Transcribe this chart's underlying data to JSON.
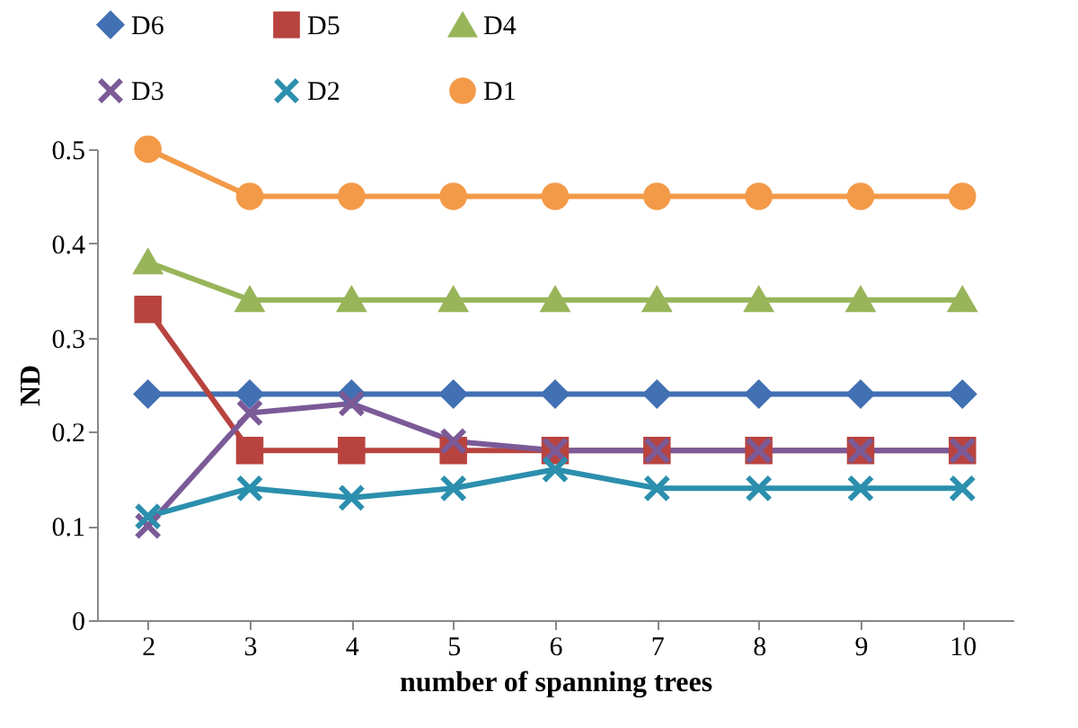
{
  "chart_data": {
    "type": "line",
    "xlabel": "number of spanning trees",
    "ylabel": "ND",
    "categories": [
      "2",
      "3",
      "4",
      "5",
      "6",
      "7",
      "8",
      "9",
      "10"
    ],
    "ylim": [
      0,
      0.5
    ],
    "yticks": [
      0,
      0.1,
      0.2,
      0.3,
      0.4,
      0.5
    ],
    "grid": false,
    "legend": "top",
    "line_style": "solid",
    "series": [
      {
        "name": "D6",
        "color": "#4170b3",
        "marker": "diamond",
        "values": [
          0.24,
          0.24,
          0.24,
          0.24,
          0.24,
          0.24,
          0.24,
          0.24,
          0.24
        ]
      },
      {
        "name": "D5",
        "color": "#b8433f",
        "marker": "square",
        "values": [
          0.33,
          0.18,
          0.18,
          0.18,
          0.18,
          0.18,
          0.18,
          0.18,
          0.18
        ]
      },
      {
        "name": "D4",
        "color": "#98b55a",
        "marker": "triangle",
        "values": [
          0.38,
          0.34,
          0.34,
          0.34,
          0.34,
          0.34,
          0.34,
          0.34,
          0.34
        ]
      },
      {
        "name": "D3",
        "color": "#7b5a97",
        "marker": "cross",
        "values": [
          0.1,
          0.22,
          0.23,
          0.19,
          0.18,
          0.18,
          0.18,
          0.18,
          0.18
        ]
      },
      {
        "name": "D2",
        "color": "#2b8fad",
        "marker": "cross",
        "values": [
          0.11,
          0.14,
          0.13,
          0.14,
          0.16,
          0.14,
          0.14,
          0.14,
          0.14
        ]
      },
      {
        "name": "D1",
        "color": "#f39a48",
        "marker": "circle",
        "values": [
          0.5,
          0.45,
          0.45,
          0.45,
          0.45,
          0.45,
          0.45,
          0.45,
          0.45
        ]
      }
    ]
  }
}
